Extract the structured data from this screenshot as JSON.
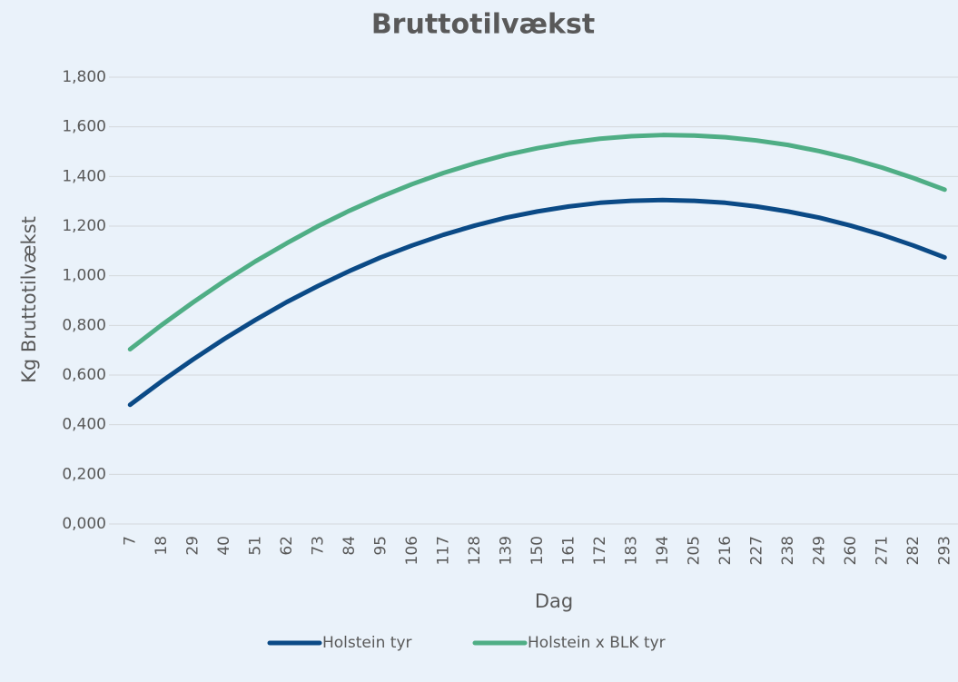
{
  "chart_data": {
    "type": "line",
    "title": "Bruttotilvækst",
    "x_label": "Dag",
    "y_label": "Kg Bruttotilvækst",
    "categories": [
      7,
      18,
      29,
      40,
      51,
      62,
      73,
      84,
      95,
      106,
      117,
      128,
      139,
      150,
      161,
      172,
      183,
      194,
      205,
      216,
      227,
      238,
      249,
      260,
      271,
      282,
      293
    ],
    "series": [
      {
        "name": "Holstein tyr",
        "color": "#0b4a86",
        "values": [
          0.48,
          0.574,
          0.662,
          0.745,
          0.822,
          0.894,
          0.959,
          1.019,
          1.074,
          1.122,
          1.165,
          1.202,
          1.234,
          1.259,
          1.279,
          1.294,
          1.302,
          1.305,
          1.302,
          1.294,
          1.279,
          1.259,
          1.234,
          1.202,
          1.165,
          1.122,
          1.074
        ]
      },
      {
        "name": "Holstein x BLK tyr",
        "color": "#4fae85",
        "values": [
          0.704,
          0.801,
          0.892,
          0.978,
          1.058,
          1.131,
          1.2,
          1.262,
          1.318,
          1.369,
          1.414,
          1.453,
          1.487,
          1.514,
          1.536,
          1.552,
          1.562,
          1.567,
          1.565,
          1.558,
          1.545,
          1.527,
          1.502,
          1.472,
          1.436,
          1.394,
          1.347
        ]
      }
    ],
    "ylim": [
      0,
      1.8
    ],
    "yticks": [
      {
        "value": 0,
        "label": "0,000"
      },
      {
        "value": 0.2,
        "label": "0,200"
      },
      {
        "value": 0.4,
        "label": "0,400"
      },
      {
        "value": 0.6,
        "label": "0,600"
      },
      {
        "value": 0.8,
        "label": "0,800"
      },
      {
        "value": 1.0,
        "label": "1,000"
      },
      {
        "value": 1.2,
        "label": "1,200"
      },
      {
        "value": 1.4,
        "label": "1,400"
      },
      {
        "value": 1.6,
        "label": "1,600"
      },
      {
        "value": 1.8,
        "label": "1,800"
      }
    ],
    "grid": true,
    "legend": "bottom"
  }
}
